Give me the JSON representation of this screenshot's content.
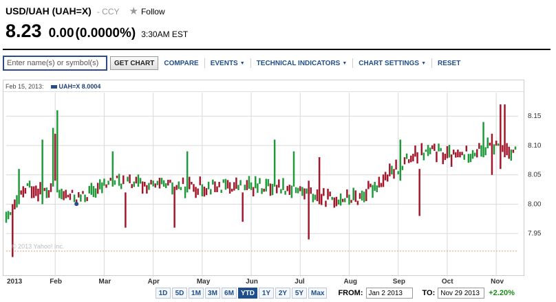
{
  "quote": {
    "name": "USD/UAH (UAH=X)",
    "exchange": "- CCY",
    "follow_label": "Follow",
    "price": "8.23",
    "change": "0.00",
    "change_pct": "(0.0000%)",
    "time": "3:30AM EST"
  },
  "toolbar": {
    "search_placeholder": "Enter name(s) or symbol(s)",
    "get_chart": "GET CHART",
    "compare": "COMPARE",
    "events": "EVENTS",
    "technical": "TECHNICAL INDICATORS",
    "settings": "CHART SETTINGS",
    "reset": "RESET"
  },
  "legend": {
    "date": "Feb 15, 2013:",
    "series": "UAH=X 8.0004",
    "series_color": "#2b4c8c"
  },
  "watermark": "© 2013 Yahoo! Inc.",
  "colors": {
    "up": "#1e9a3a",
    "down": "#a3162a",
    "grid": "#d8d8d8",
    "baseline": "#e0a070",
    "accent": "#1f4e8c"
  },
  "range": {
    "buttons": [
      "1D",
      "5D",
      "1M",
      "3M",
      "6M",
      "YTD",
      "1Y",
      "2Y",
      "5Y",
      "Max"
    ],
    "active": "YTD",
    "from_label": "FROM:",
    "from_value": "Jan 2 2013",
    "to_label": "TO:",
    "to_value": "Nov 29 2013",
    "pct": "+2.20%"
  },
  "chart_data": {
    "type": "candlestick",
    "x_labels": [
      "2013",
      "Feb",
      "Mar",
      "Apr",
      "May",
      "Jun",
      "Jul",
      "Aug",
      "Sep",
      "Oct",
      "Nov"
    ],
    "y_ticks": [
      "7.95",
      "8.00",
      "8.05",
      "8.10",
      "8.15"
    ],
    "y_tick_values": [
      7.95,
      8.0,
      8.05,
      8.1,
      8.15
    ],
    "ylim": [
      7.9,
      8.19
    ],
    "baseline": 7.92,
    "n_days": 240,
    "anchors": [
      [
        0,
        7.97
      ],
      [
        10,
        8.03
      ],
      [
        20,
        8.02
      ],
      [
        35,
        8.01
      ],
      [
        50,
        8.04
      ],
      [
        70,
        8.03
      ],
      [
        90,
        8.03
      ],
      [
        110,
        8.03
      ],
      [
        130,
        8.03
      ],
      [
        150,
        8.01
      ],
      [
        165,
        8.01
      ],
      [
        180,
        8.05
      ],
      [
        190,
        8.08
      ],
      [
        200,
        8.09
      ],
      [
        210,
        8.08
      ],
      [
        220,
        8.09
      ],
      [
        230,
        8.1
      ],
      [
        239,
        8.09
      ]
    ],
    "spikes": [
      {
        "day": 3,
        "dir": "down",
        "high": 8.0,
        "low": 7.91
      },
      {
        "day": 6,
        "dir": "up",
        "high": 8.06,
        "low": 8.0
      },
      {
        "day": 17,
        "dir": "up",
        "high": 8.11,
        "low": 8.0
      },
      {
        "day": 22,
        "dir": "up",
        "high": 8.13,
        "low": 8.03
      },
      {
        "day": 24,
        "dir": "up",
        "high": 8.16,
        "low": 8.02
      },
      {
        "day": 23,
        "dir": "down",
        "high": 8.12,
        "low": 8.04
      },
      {
        "day": 50,
        "dir": "up",
        "high": 8.09,
        "low": 8.03
      },
      {
        "day": 56,
        "dir": "down",
        "high": 8.02,
        "low": 7.96
      },
      {
        "day": 79,
        "dir": "down",
        "high": 8.03,
        "low": 7.96
      },
      {
        "day": 85,
        "dir": "up",
        "high": 8.09,
        "low": 8.02
      },
      {
        "day": 111,
        "dir": "down",
        "high": 8.02,
        "low": 7.97
      },
      {
        "day": 126,
        "dir": "up",
        "high": 8.11,
        "low": 8.03
      },
      {
        "day": 135,
        "dir": "up",
        "high": 8.09,
        "low": 8.03
      },
      {
        "day": 142,
        "dir": "down",
        "high": 8.04,
        "low": 7.94
      },
      {
        "day": 147,
        "dir": "down",
        "high": 8.08,
        "low": 8.0
      },
      {
        "day": 185,
        "dir": "up",
        "high": 8.11,
        "low": 8.04
      },
      {
        "day": 194,
        "dir": "down",
        "high": 8.06,
        "low": 7.98
      },
      {
        "day": 224,
        "dir": "up",
        "high": 8.14,
        "low": 8.08
      },
      {
        "day": 228,
        "dir": "down",
        "high": 8.12,
        "low": 8.05
      },
      {
        "day": 232,
        "dir": "down",
        "high": 8.17,
        "low": 8.06
      },
      {
        "day": 234,
        "dir": "down",
        "high": 8.17,
        "low": 8.08
      }
    ]
  }
}
